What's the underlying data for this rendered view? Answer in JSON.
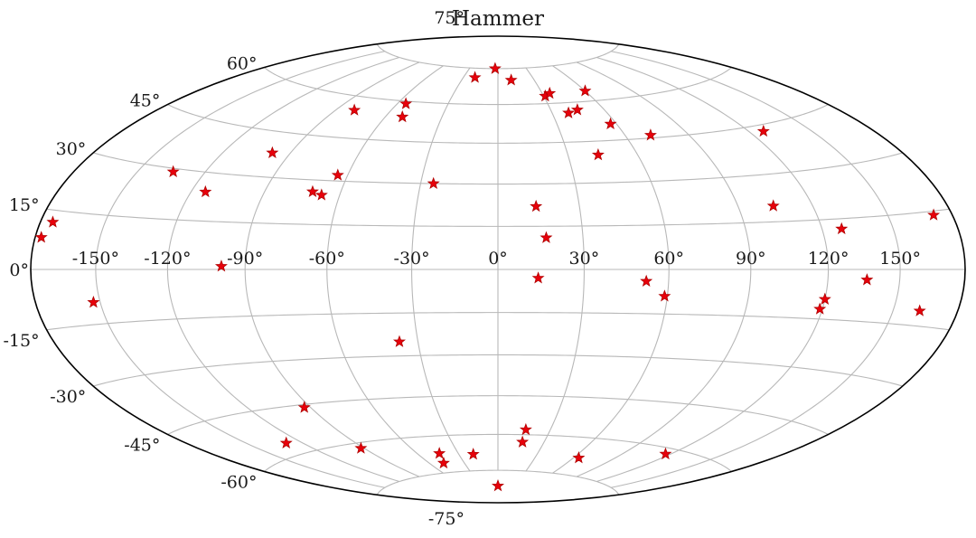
{
  "chart_data": {
    "type": "scatter",
    "projection": "Hammer",
    "title": "Hammer",
    "grid": true,
    "colors": {
      "marker": "#e8000b",
      "marker_edge": "#b00000",
      "grid": "#b8b8b8",
      "frame": "#000000",
      "background": "#ffffff"
    },
    "marker": "star",
    "xlim": [
      -180,
      180
    ],
    "ylim": [
      -90,
      90
    ],
    "x_tick_labels": [
      {
        "value": -150,
        "label": "-150°"
      },
      {
        "value": -120,
        "label": "-120°"
      },
      {
        "value": -90,
        "label": "-90°"
      },
      {
        "value": -60,
        "label": "-60°"
      },
      {
        "value": -30,
        "label": "-30°"
      },
      {
        "value": 0,
        "label": "0°"
      },
      {
        "value": 30,
        "label": "30°"
      },
      {
        "value": 60,
        "label": "60°"
      },
      {
        "value": 90,
        "label": "90°"
      },
      {
        "value": 120,
        "label": "120°"
      },
      {
        "value": 150,
        "label": "150°"
      }
    ],
    "y_tick_labels": [
      {
        "value": 75,
        "label": "75°"
      },
      {
        "value": 60,
        "label": "60°"
      },
      {
        "value": 45,
        "label": "45°"
      },
      {
        "value": 30,
        "label": "30°"
      },
      {
        "value": 15,
        "label": "15°"
      },
      {
        "value": 0,
        "label": "0°"
      },
      {
        "value": -15,
        "label": "-15°"
      },
      {
        "value": -30,
        "label": "-30°"
      },
      {
        "value": -45,
        "label": "-45°"
      },
      {
        "value": -60,
        "label": "-60°"
      },
      {
        "value": -75,
        "label": "-75°"
      }
    ],
    "points": [
      {
        "lon": -174,
        "lat": 12
      },
      {
        "lon": -177,
        "lat": 8
      },
      {
        "lon": -134,
        "lat": 29
      },
      {
        "lon": -114,
        "lat": 24
      },
      {
        "lon": -98,
        "lat": 38
      },
      {
        "lon": -71,
        "lat": 26
      },
      {
        "lon": -67,
        "lat": 25
      },
      {
        "lon": -64,
        "lat": 32
      },
      {
        "lon": -25,
        "lat": 30
      },
      {
        "lon": -80,
        "lat": 55
      },
      {
        "lon": -51,
        "lat": 54
      },
      {
        "lon": -55,
        "lat": 59
      },
      {
        "lon": -20,
        "lat": 71
      },
      {
        "lon": -3,
        "lat": 75
      },
      {
        "lon": 11,
        "lat": 70
      },
      {
        "lon": 31,
        "lat": 63
      },
      {
        "lon": 35,
        "lat": 64
      },
      {
        "lon": 60,
        "lat": 64
      },
      {
        "lon": 39,
        "lat": 56
      },
      {
        "lon": 45,
        "lat": 57
      },
      {
        "lon": 57,
        "lat": 51
      },
      {
        "lon": 72,
        "lat": 46
      },
      {
        "lon": 43,
        "lat": 40
      },
      {
        "lon": 127,
        "lat": 43
      },
      {
        "lon": 14,
        "lat": 22
      },
      {
        "lon": 17,
        "lat": 11
      },
      {
        "lon": 104,
        "lat": 20
      },
      {
        "lon": 128,
        "lat": 12
      },
      {
        "lon": 171,
        "lat": 14
      },
      {
        "lon": -99,
        "lat": 1
      },
      {
        "lon": -153,
        "lat": -9
      },
      {
        "lon": 14,
        "lat": -3
      },
      {
        "lon": 52,
        "lat": -4
      },
      {
        "lon": 59,
        "lat": -9
      },
      {
        "lon": 120,
        "lat": -9
      },
      {
        "lon": 119,
        "lat": -12
      },
      {
        "lon": 136,
        "lat": -3
      },
      {
        "lon": 162,
        "lat": -11
      },
      {
        "lon": -37,
        "lat": -25
      },
      {
        "lon": -93,
        "lat": -46
      },
      {
        "lon": -129,
        "lat": -56
      },
      {
        "lon": -92,
        "lat": -62
      },
      {
        "lon": -44,
        "lat": -67
      },
      {
        "lon": -48,
        "lat": -71
      },
      {
        "lon": -19,
        "lat": -68
      },
      {
        "lon": 16,
        "lat": -58
      },
      {
        "lon": 16,
        "lat": -63
      },
      {
        "lon": 64,
        "lat": -68
      },
      {
        "lon": 117,
        "lat": -62
      },
      {
        "lon": 0,
        "lat": -82
      }
    ]
  }
}
